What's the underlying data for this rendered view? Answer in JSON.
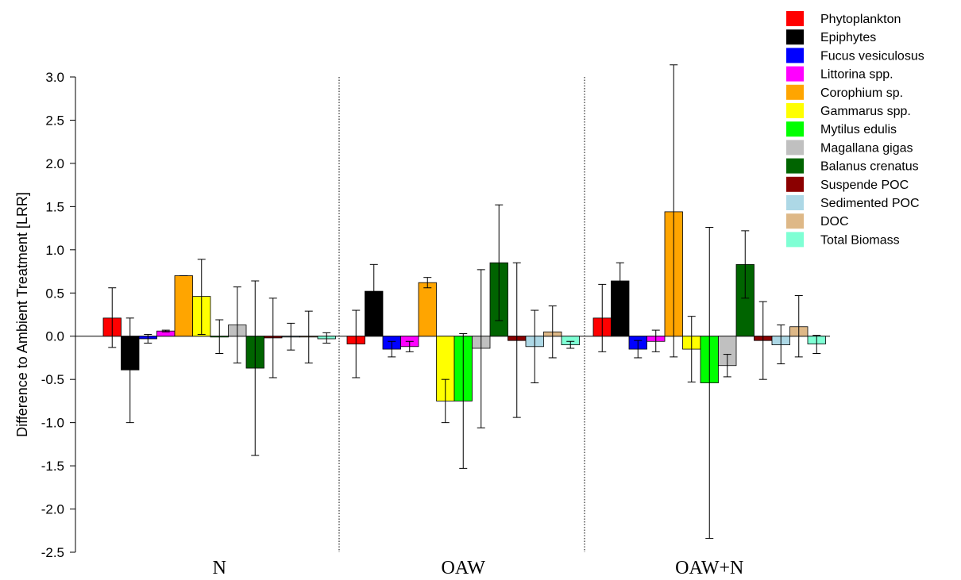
{
  "chart_data": {
    "type": "bar",
    "title": "",
    "xlabel": "",
    "ylabel": "Difference to Ambient Treatment [LRR]",
    "ylim": [
      -2.5,
      3.0
    ],
    "yticks": [
      "-2.5",
      "-2.0",
      "-1.5",
      "-1.0",
      "-0.5",
      "0.0",
      "0.5",
      "1.0",
      "1.5",
      "2.0",
      "2.5",
      "3.0"
    ],
    "grid": false,
    "legend_position": "top-right",
    "categories": [
      "N",
      "OAW",
      "OAW+N"
    ],
    "series": [
      {
        "name": "Phytoplankton",
        "color": "#ff0000",
        "values": [
          0.21,
          -0.09,
          0.21
        ],
        "lower": [
          -0.13,
          -0.48,
          -0.18
        ],
        "upper": [
          0.56,
          0.3,
          0.6
        ]
      },
      {
        "name": "Epiphytes",
        "color": "#000000",
        "values": [
          -0.39,
          0.52,
          0.64
        ],
        "lower": [
          -1.0,
          0.21,
          0.43
        ],
        "upper": [
          0.21,
          0.83,
          0.85
        ]
      },
      {
        "name": "Fucus vesiculosus",
        "color": "#0000ff",
        "values": [
          -0.03,
          -0.15,
          -0.15
        ],
        "lower": [
          -0.08,
          -0.24,
          -0.25
        ],
        "upper": [
          0.02,
          -0.06,
          -0.05
        ]
      },
      {
        "name": "Littorina spp.",
        "color": "#ff00ff",
        "values": [
          0.06,
          -0.12,
          -0.06
        ],
        "lower": [
          0.05,
          -0.18,
          -0.18
        ],
        "upper": [
          0.07,
          -0.06,
          0.07
        ]
      },
      {
        "name": "Corophium sp.",
        "color": "#ffa500",
        "values": [
          0.7,
          0.62,
          1.44
        ],
        "lower": [
          0.7,
          0.56,
          -0.24
        ],
        "upper": [
          0.7,
          0.68,
          3.14
        ]
      },
      {
        "name": "Gammarus spp.",
        "color": "#ffff00",
        "values": [
          0.46,
          -0.75,
          -0.15
        ],
        "lower": [
          0.02,
          -1.0,
          -0.53
        ],
        "upper": [
          0.89,
          -0.5,
          0.23
        ]
      },
      {
        "name": "Mytilus edulis",
        "color": "#00ff00",
        "values": [
          -0.01,
          -0.75,
          -0.54
        ],
        "lower": [
          -0.2,
          -1.53,
          -2.34
        ],
        "upper": [
          0.19,
          0.03,
          1.26
        ]
      },
      {
        "name": "Magallana gigas",
        "color": "#c0c0c0",
        "values": [
          0.13,
          -0.14,
          -0.34
        ],
        "lower": [
          -0.31,
          -1.06,
          -0.47
        ],
        "upper": [
          0.57,
          0.77,
          -0.21
        ]
      },
      {
        "name": "Balanus crenatus",
        "color": "#006400",
        "values": [
          -0.37,
          0.85,
          0.83
        ],
        "lower": [
          -1.38,
          0.18,
          0.44
        ],
        "upper": [
          0.64,
          1.52,
          1.22
        ]
      },
      {
        "name": "Suspende POC",
        "color": "#8b0000",
        "values": [
          -0.02,
          -0.05,
          -0.05
        ],
        "lower": [
          -0.48,
          -0.94,
          -0.5
        ],
        "upper": [
          0.44,
          0.85,
          0.4
        ]
      },
      {
        "name": "Sedimented POC",
        "color": "#add8e6",
        "values": [
          -0.01,
          -0.12,
          -0.1
        ],
        "lower": [
          -0.16,
          -0.54,
          -0.32
        ],
        "upper": [
          0.15,
          0.3,
          0.13
        ]
      },
      {
        "name": "DOC",
        "color": "#deb887",
        "values": [
          -0.01,
          0.05,
          0.11
        ],
        "lower": [
          -0.31,
          -0.25,
          -0.24
        ],
        "upper": [
          0.29,
          0.35,
          0.47
        ]
      },
      {
        "name": "Total Biomass",
        "color": "#7fffd4",
        "values": [
          -0.03,
          -0.1,
          -0.09
        ],
        "lower": [
          -0.08,
          -0.14,
          -0.2
        ],
        "upper": [
          0.04,
          -0.06,
          0.01
        ]
      }
    ]
  }
}
